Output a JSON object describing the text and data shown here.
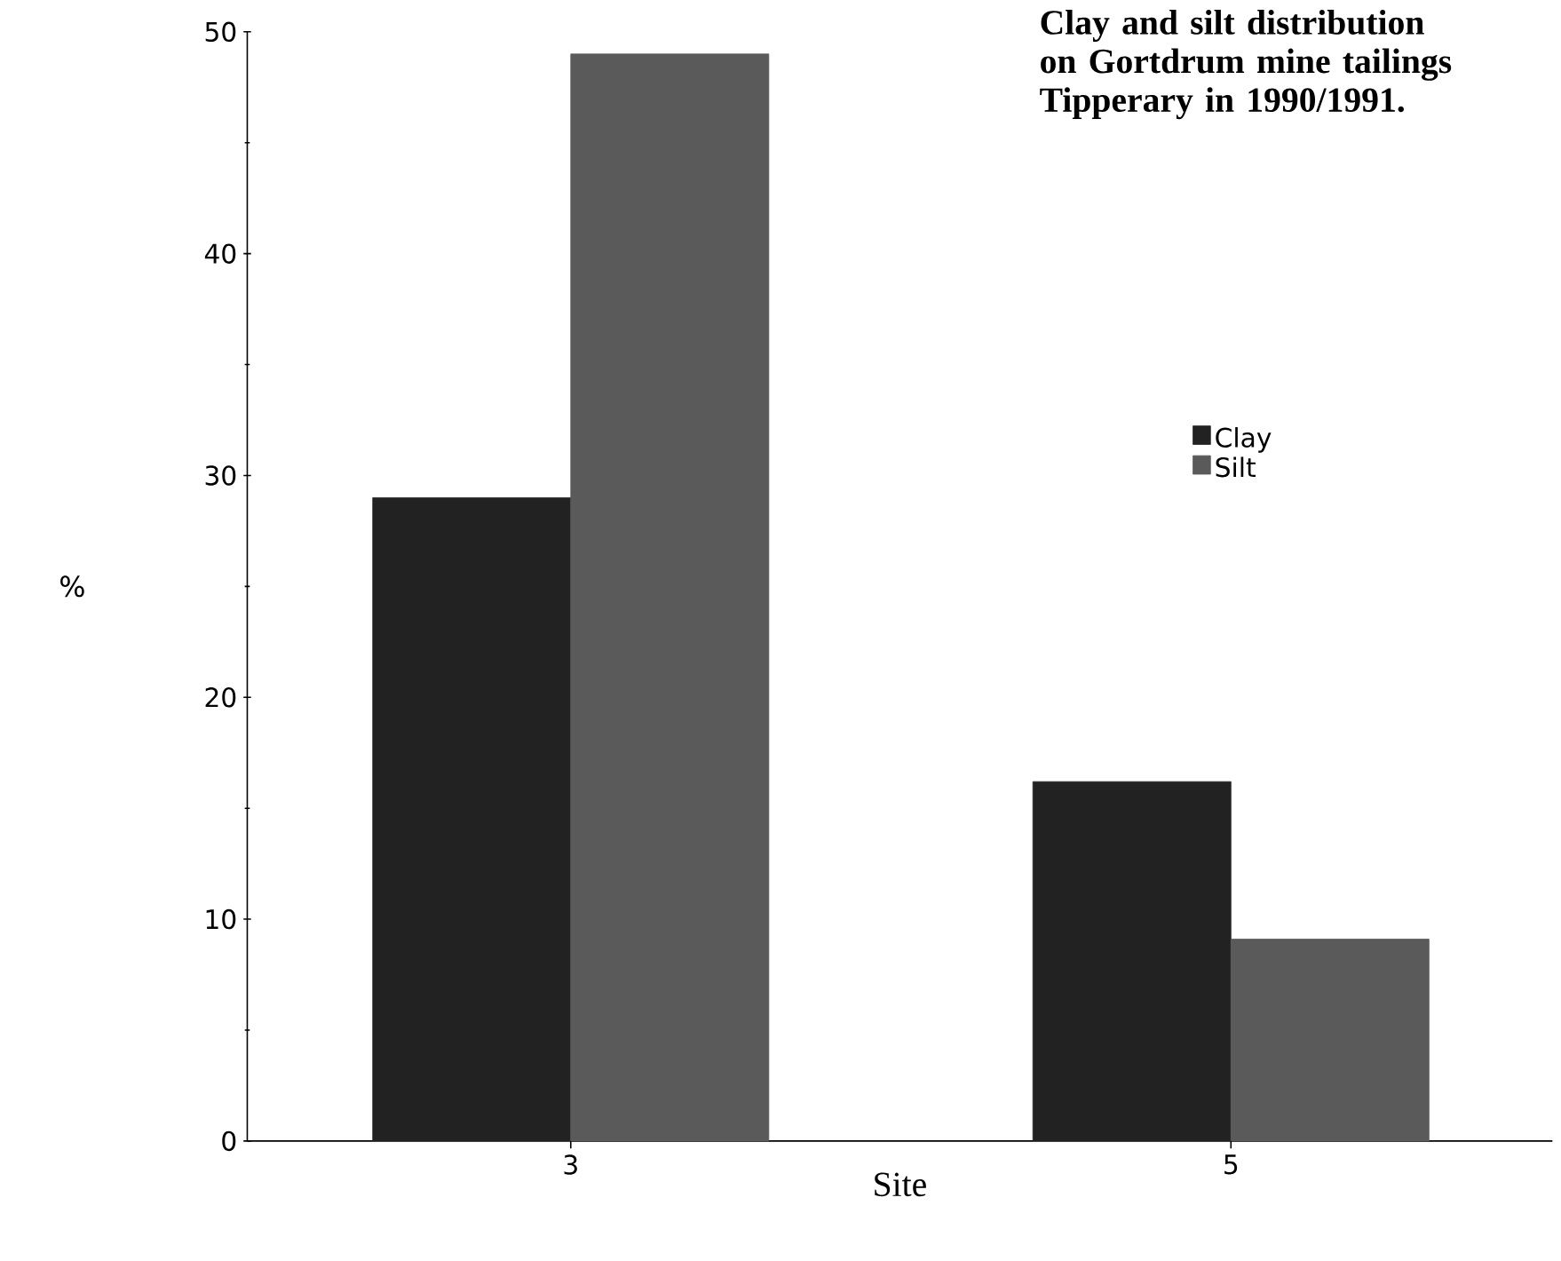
{
  "chart_data": {
    "type": "bar",
    "title": "Clay and silt distribution on Gortdrum mine tailings Tipperary in 1990/1991.",
    "xlabel": "Site",
    "ylabel": "%",
    "categories": [
      "3",
      "5"
    ],
    "series": [
      {
        "name": "Clay",
        "color": "#222222",
        "values": [
          29,
          16.2
        ]
      },
      {
        "name": "Silt",
        "color": "#5a5a5a",
        "values": [
          49,
          9.1
        ]
      }
    ],
    "ylim": [
      0,
      50
    ],
    "yticks": [
      0,
      10,
      20,
      30,
      40,
      50
    ],
    "grid": false,
    "legend": "right"
  }
}
